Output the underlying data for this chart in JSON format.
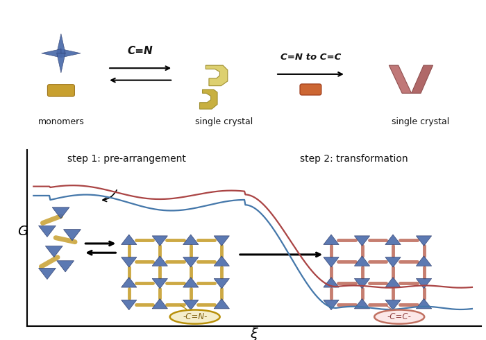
{
  "bg_color": "#ffffff",
  "box_color": "#4ab8d8",
  "box_bg": "#ffffff",
  "text_color": "#111111",
  "label1": "monomers",
  "label2": "single crystal",
  "label3": "single crystal",
  "arrow1_text": "C=N",
  "arrow2_text": "C=N to C=C",
  "step1_text": "step 1: pre-arrangement",
  "step2_text": "step 2: transformation",
  "xlabel": "ξ",
  "ylabel": "G",
  "cn_label": "-C=N-",
  "cc_label": "-C=C-",
  "blue_node": "#4a6aaa",
  "blue_node_dark": "#2a3a6a",
  "gold_linker": "#c8a030",
  "red_linker": "#c07060",
  "curve_blue": "#4477aa",
  "curve_red": "#aa4444"
}
